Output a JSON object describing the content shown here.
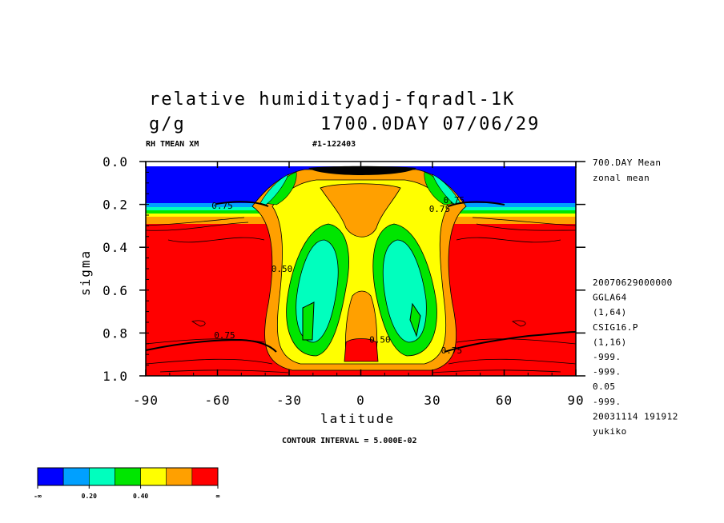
{
  "title_line1": "relative humidityadj-fqradl-1K",
  "title_units": "g/g",
  "title_time": "1700.0DAY 07/06/29",
  "var_label": "RH TMEAN XM",
  "run_label": "#1-122403",
  "contour_interval": "CONTOUR INTERVAL = 5.000E-02",
  "side_info_top": [
    "700.DAY Mean",
    "zonal mean"
  ],
  "side_info_bottom": [
    "20070629000000",
    "GGLA64",
    "(1,64)",
    "CSIG16.P",
    "(1,16)",
    "-999.",
    "-999.",
    "0.05",
    "-999.",
    "20031114 191912",
    "yukiko"
  ],
  "chart_data": {
    "type": "heatmap",
    "title": "relative humidityadj-fqradl-1K",
    "xlabel": "latitude",
    "ylabel": "sigma",
    "xlim": [
      -90,
      90
    ],
    "ylim": [
      1.0,
      0.0
    ],
    "x_ticks": [
      -90,
      -60,
      -30,
      0,
      30,
      60,
      90
    ],
    "x_tick_labels": [
      "-90",
      "-60",
      "-30",
      "0",
      "30",
      "60",
      "90"
    ],
    "y_ticks": [
      0.0,
      0.2,
      0.4,
      0.6,
      0.8,
      1.0
    ],
    "y_tick_labels": [
      "0.0",
      "0.2",
      "0.4",
      "0.6",
      "0.8",
      "1.0"
    ],
    "contour_labels": [
      {
        "text": "0.75",
        "lat": -58,
        "sigma": 0.205
      },
      {
        "text": "0.75",
        "lat": 39,
        "sigma": 0.18
      },
      {
        "text": "0.75",
        "lat": 33,
        "sigma": 0.22
      },
      {
        "text": "0.50",
        "lat": -33,
        "sigma": 0.5
      },
      {
        "text": "0.75",
        "lat": -57,
        "sigma": 0.81
      },
      {
        "text": "0.50",
        "lat": 8,
        "sigma": 0.83
      },
      {
        "text": "0.75",
        "lat": 38,
        "sigma": 0.88
      }
    ],
    "colorbar": {
      "colors": [
        "#0000ff",
        "#00a0ff",
        "#00ffbe",
        "#00e600",
        "#ffff00",
        "#ffa000",
        "#ff0000"
      ],
      "labels": [
        "-∞",
        "0.20",
        "0.40",
        "∞"
      ],
      "label_positions": [
        0,
        2,
        4,
        7
      ]
    }
  }
}
